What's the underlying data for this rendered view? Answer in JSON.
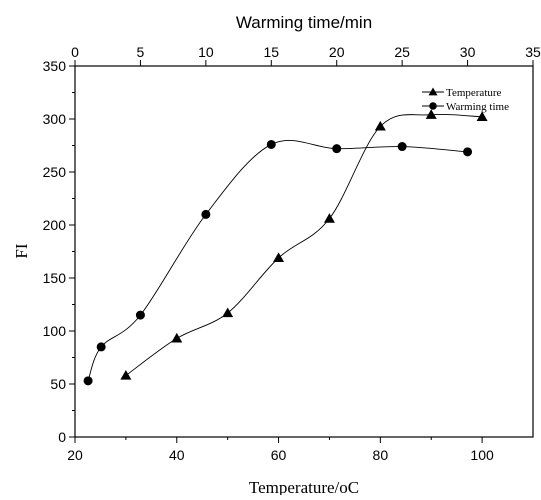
{
  "chart_data": {
    "type": "line",
    "xlabel": "Temperature/",
    "xlabel_unit": "oC",
    "x2label": "Warming time/min",
    "ylabel": "FI",
    "xlim": [
      20,
      110
    ],
    "x2lim": [
      0,
      35
    ],
    "ylim": [
      0,
      350
    ],
    "x_ticks": [
      20,
      40,
      60,
      80,
      100
    ],
    "x2_ticks": [
      0,
      5,
      10,
      15,
      20,
      25,
      30,
      35
    ],
    "y_ticks": [
      0,
      50,
      100,
      150,
      200,
      250,
      300,
      350
    ],
    "grid": false,
    "legend_position": "top-right",
    "series": [
      {
        "name": "Temperature",
        "axis": "bottom",
        "marker": "triangle",
        "x": [
          30,
          40,
          50,
          60,
          70,
          80,
          90,
          100
        ],
        "y": [
          58,
          93,
          117,
          169,
          206,
          293,
          304,
          302
        ]
      },
      {
        "name": "Warming time",
        "axis": "top",
        "marker": "circle",
        "x": [
          1,
          2,
          5,
          10,
          15,
          20,
          25,
          30
        ],
        "y": [
          53,
          85,
          115,
          210,
          276,
          272,
          274,
          269
        ]
      }
    ]
  }
}
